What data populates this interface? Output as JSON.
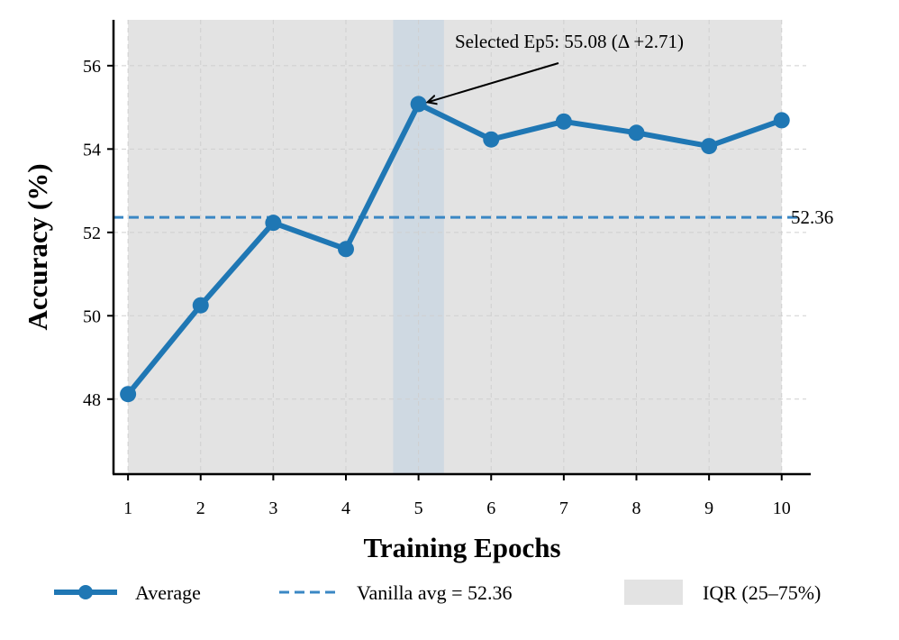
{
  "chart_data": {
    "type": "line",
    "xlabel": "Training Epochs",
    "ylabel": "Accuracy (%)",
    "x": [
      1,
      2,
      3,
      4,
      5,
      6,
      7,
      8,
      9,
      10
    ],
    "xticks": [
      "1",
      "2",
      "3",
      "4",
      "5",
      "6",
      "7",
      "8",
      "9",
      "10"
    ],
    "yticks": [
      "48",
      "50",
      "52",
      "54",
      "56"
    ],
    "xlim": [
      0.8,
      10.4
    ],
    "ylim": [
      46.2,
      57.1
    ],
    "grid": true,
    "series": [
      {
        "name": "Average",
        "values": [
          48.12,
          50.25,
          52.23,
          51.6,
          55.08,
          54.23,
          54.66,
          54.39,
          54.07,
          54.69
        ],
        "color": "#1f77b4"
      }
    ],
    "reference_line": {
      "name": "Vanilla avg = 52.36",
      "value": 52.36,
      "label": "52.36",
      "color": "#3a87c4"
    },
    "iqr_band": {
      "name": "IQR (25–75%)",
      "x_range": [
        1,
        10
      ],
      "color": "#e3e3e3"
    },
    "highlight": {
      "x_range": [
        4.65,
        5.35
      ],
      "color": "#cfd9e2"
    },
    "annotation": {
      "text": "Selected Ep5: 55.08  (Δ +2.71)",
      "x": 5,
      "y": 55.08
    },
    "legend_position": "bottom"
  }
}
